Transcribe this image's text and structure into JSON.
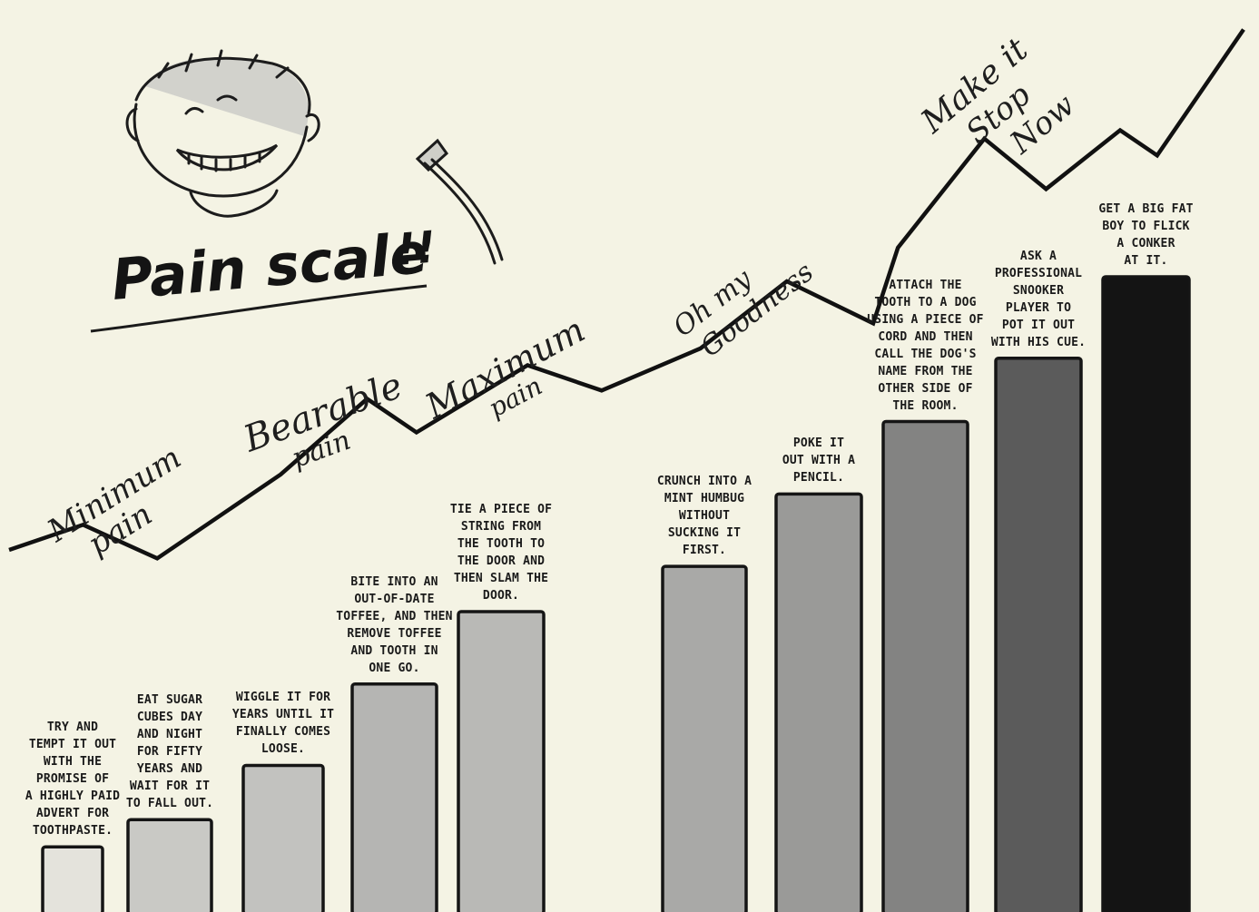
{
  "chart_data": {
    "type": "bar",
    "title": "Pain scale",
    "title_marks": "!!",
    "bar_shades": [
      "#e4e3dc",
      "#c9c9c5",
      "#c2c2bf",
      "#b5b5b3",
      "#b9b9b6",
      "#a9a9a7",
      "#9a9a98",
      "#838382",
      "#5b5b5b",
      "#141414"
    ],
    "categories": [
      "TRY AND TEMPT IT OUT WITH THE PROMISE OF A HIGHLY PAID ADVERT FOR TOOTHPASTE.",
      "EAT SUGAR CUBES DAY AND NIGHT FOR FIFTY YEARS AND WAIT FOR IT TO FALL OUT.",
      "WIGGLE IT FOR YEARS UNTIL IT FINALLY COMES LOOSE.",
      "BITE INTO AN OUT-OF-DATE TOFFEE, AND THEN REMOVE TOFFEE AND TOOTH IN ONE GO.",
      "TIE A PIECE OF STRING FROM THE TOOTH TO THE DOOR AND THEN SLAM THE DOOR.",
      "CRUNCH INTO A MINT HUMBUG WITHOUT SUCKING IT FIRST.",
      "POKE IT OUT WITH A PENCIL.",
      "ATTACH THE TOOTH TO A DOG USING A PIECE OF CORD AND THEN CALL THE DOG'S NAME FROM THE OTHER SIDE OF THE ROOM.",
      "ASK A PROFESSIONAL SNOOKER PLAYER TO POT IT OUT WITH HIS CUE.",
      "GET A BIG FAT BOY TO FLICK A CONKER AT IT."
    ],
    "caption_lines": [
      [
        "TRY AND",
        "TEMPT IT OUT",
        "WITH THE",
        "PROMISE OF",
        "A HIGHLY PAID",
        "ADVERT FOR",
        "TOOTHPASTE."
      ],
      [
        "EAT SUGAR",
        "CUBES DAY",
        "AND NIGHT",
        "FOR FIFTY",
        "YEARS AND",
        "WAIT FOR IT",
        "TO FALL OUT."
      ],
      [
        "WIGGLE IT FOR",
        "YEARS UNTIL IT",
        "FINALLY COMES",
        "LOOSE."
      ],
      [
        "BITE INTO AN",
        "OUT-OF-DATE",
        "TOFFEE, AND THEN",
        "REMOVE TOFFEE",
        "AND TOOTH IN",
        "ONE GO."
      ],
      [
        "TIE A PIECE OF",
        "STRING FROM",
        "THE TOOTH TO",
        "THE DOOR AND",
        "THEN SLAM THE",
        "DOOR."
      ],
      [
        "CRUNCH INTO A",
        "MINT HUMBUG",
        "WITHOUT",
        "SUCKING IT",
        "FIRST."
      ],
      [
        "POKE IT",
        "OUT WITH A",
        "PENCIL."
      ],
      [
        "ATTACH THE",
        "TOOTH TO A DOG",
        "USING A PIECE OF",
        "CORD AND THEN",
        "CALL THE DOG'S",
        "NAME FROM THE",
        "OTHER SIDE OF",
        "THE ROOM."
      ],
      [
        "ASK A",
        "PROFESSIONAL",
        "SNOOKER",
        "PLAYER TO",
        "POT IT OUT",
        "WITH HIS CUE."
      ],
      [
        "GET A BIG FAT",
        "BOY TO FLICK",
        "A CONKER",
        "AT IT."
      ]
    ],
    "values": [
      7,
      10,
      16,
      25,
      33,
      38,
      46,
      54,
      61,
      70
    ],
    "ylim": [
      0,
      70
    ],
    "scale_labels": [
      {
        "text": "Minimum",
        "second": "pain"
      },
      {
        "text": "Bearable",
        "second": "pain"
      },
      {
        "text": "Maximum",
        "second": "pain"
      },
      {
        "text": "Oh my",
        "second": "Goodness"
      },
      {
        "text": "Make it",
        "second": "Stop",
        "third": "Now"
      }
    ],
    "trend_line": [
      [
        0,
        8
      ],
      [
        0.6,
        11
      ],
      [
        1.2,
        7
      ],
      [
        2.2,
        17
      ],
      [
        2.9,
        26
      ],
      [
        3.3,
        22
      ],
      [
        4.2,
        30
      ],
      [
        4.8,
        27
      ],
      [
        5.6,
        32
      ],
      [
        6.3,
        40
      ],
      [
        7.0,
        35
      ],
      [
        7.2,
        44
      ],
      [
        7.9,
        57
      ],
      [
        8.4,
        51
      ],
      [
        9.0,
        58
      ],
      [
        9.3,
        55
      ],
      [
        10.0,
        70
      ]
    ]
  }
}
